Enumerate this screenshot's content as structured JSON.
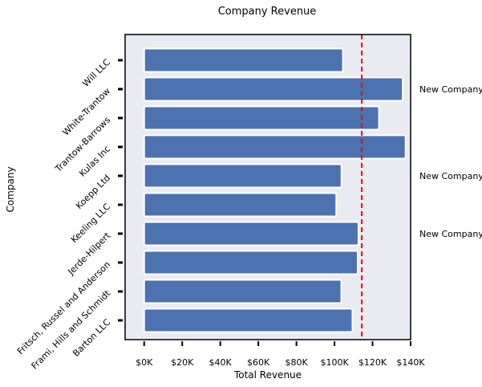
{
  "chart_data": {
    "type": "bar",
    "orientation": "horizontal",
    "title": "Company Revenue",
    "xlabel": "Total Revenue",
    "ylabel": "Company",
    "categories": [
      "Barton LLC",
      "Frami, Hills and Schmidt",
      "Fritsch, Russel and Anderson",
      "Jerde-Hilpert",
      "Keeling LLC",
      "Koepp Ltd",
      "Kulas Inc",
      "Trantow-Barrows",
      "White-Trantow",
      "Will LLC"
    ],
    "values": [
      109438,
      103569,
      112214,
      112591,
      100934,
      103660,
      137351,
      123381,
      135841,
      104437
    ],
    "xlim": [
      -10000,
      140000
    ],
    "xticks": [
      0,
      20000,
      40000,
      60000,
      80000,
      100000,
      120000,
      140000
    ],
    "xtick_labels": [
      "$0K",
      "$20K",
      "$40K",
      "$60K",
      "$80K",
      "$100K",
      "$120K",
      "$140K"
    ],
    "mean_line": {
      "value": 114330,
      "color": "#ff0000",
      "style": "dashed"
    },
    "annotations": [
      {
        "text": "New Company",
        "category": "White-Trantow"
      },
      {
        "text": "New Company",
        "category": "Koepp Ltd"
      },
      {
        "text": "New Company",
        "category": "Jerde-Hilpert"
      }
    ],
    "colors": {
      "bar": "#4c72b0",
      "background": "#eaeaf2",
      "edge": "#ffffff"
    },
    "grid": false,
    "legend": "none"
  }
}
